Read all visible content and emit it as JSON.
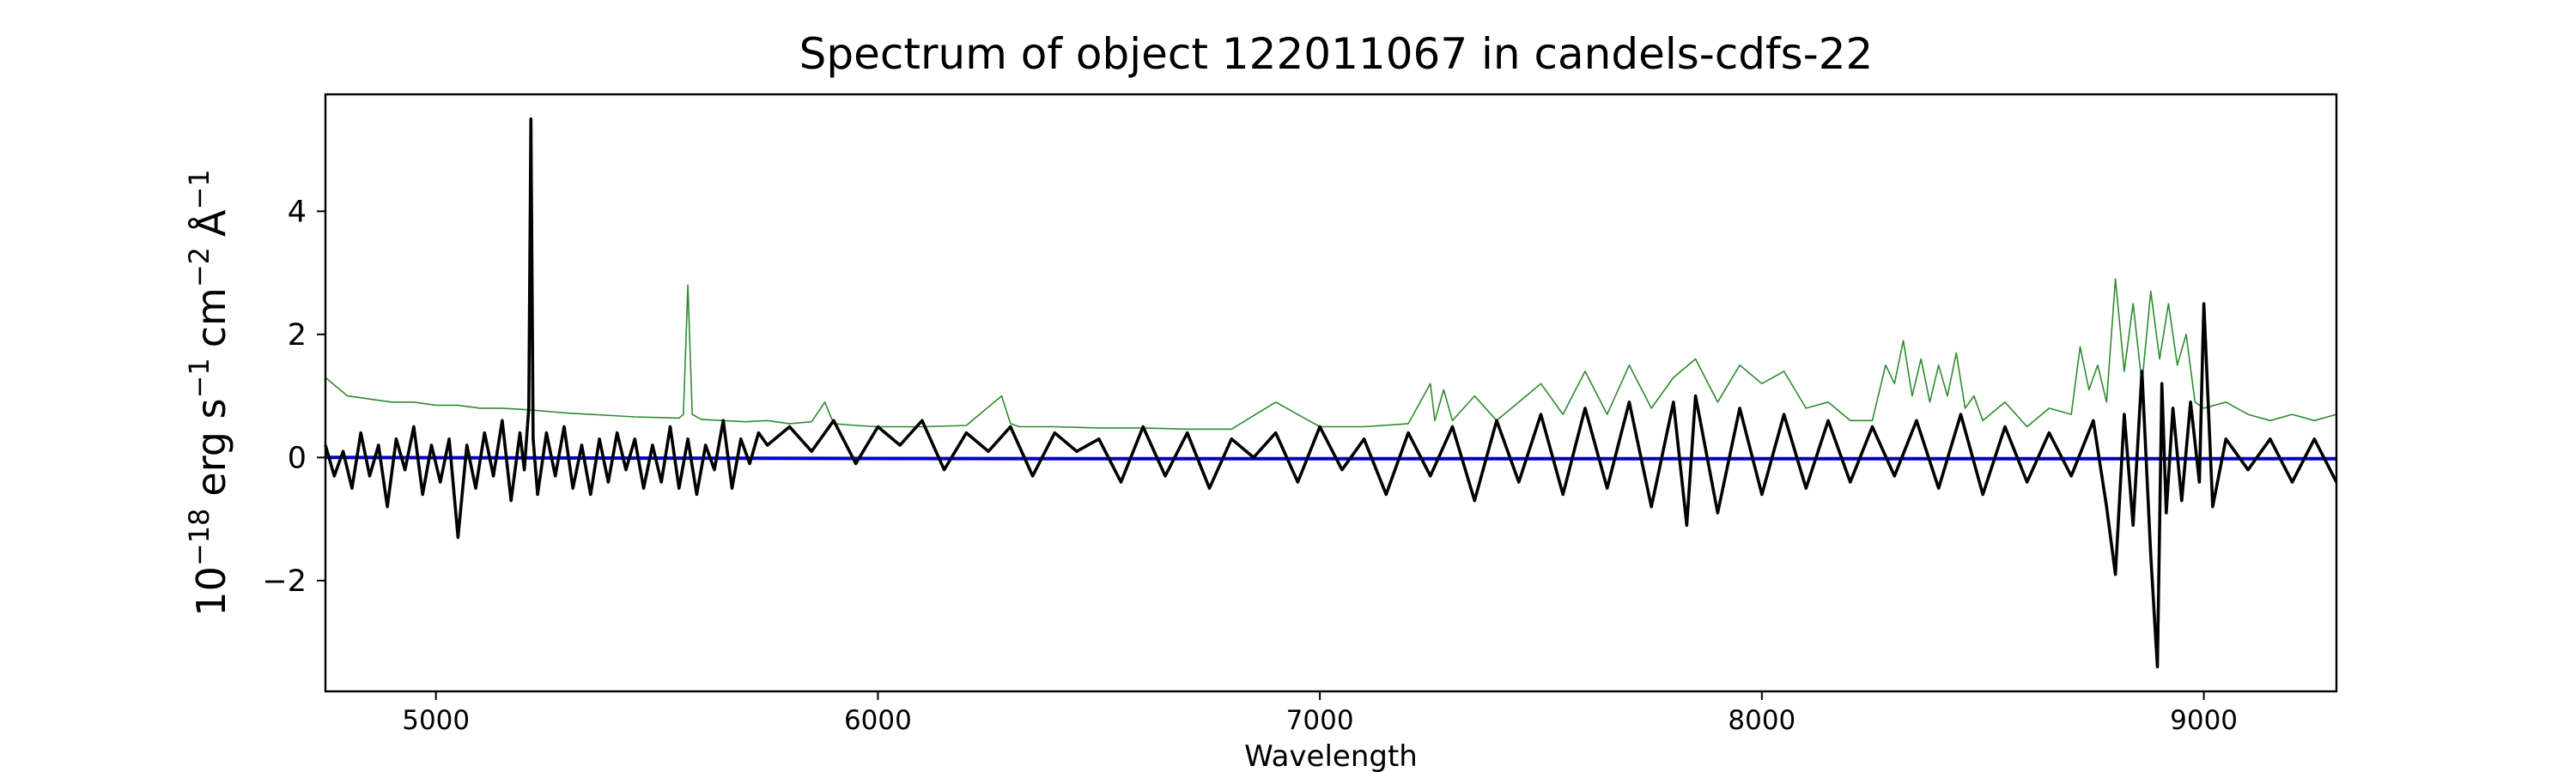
{
  "chart_data": {
    "type": "line",
    "title": "Spectrum of object 122011067 in candels-cdfs-22",
    "xlabel": "Wavelength",
    "ylabel_base": "10",
    "ylabel_exp": "−18",
    "ylabel_units": "erg s",
    "ylabel_s_exp": "−1",
    "ylabel_cm": "cm",
    "ylabel_cm_exp": "−2",
    "ylabel_ang": "Å",
    "ylabel_ang_exp": "−1",
    "xlim": [
      4750,
      9300
    ],
    "ylim": [
      -3.8,
      5.9
    ],
    "x_ticks": [
      5000,
      6000,
      7000,
      8000,
      9000
    ],
    "x_tick_labels": [
      "5000",
      "6000",
      "7000",
      "8000",
      "9000"
    ],
    "y_ticks": [
      -2,
      0,
      2,
      4
    ],
    "y_tick_labels": [
      "−2",
      "0",
      "2",
      "4"
    ],
    "grid": false,
    "colors": {
      "flux": "#000000",
      "noise": "#2e8b2e",
      "model": "#0000cc"
    },
    "series": [
      {
        "key": "flux",
        "x": [
          4750,
          4770,
          4790,
          4810,
          4830,
          4850,
          4870,
          4890,
          4910,
          4930,
          4950,
          4970,
          4990,
          5010,
          5030,
          5050,
          5070,
          5090,
          5110,
          5130,
          5150,
          5170,
          5190,
          5200,
          5210,
          5215,
          5220,
          5230,
          5250,
          5270,
          5290,
          5310,
          5330,
          5350,
          5370,
          5390,
          5410,
          5430,
          5450,
          5470,
          5490,
          5510,
          5530,
          5550,
          5570,
          5590,
          5610,
          5630,
          5650,
          5670,
          5690,
          5710,
          5730,
          5750,
          5800,
          5850,
          5900,
          5950,
          6000,
          6050,
          6100,
          6150,
          6200,
          6250,
          6300,
          6350,
          6400,
          6450,
          6500,
          6550,
          6600,
          6650,
          6700,
          6750,
          6800,
          6850,
          6900,
          6950,
          7000,
          7050,
          7100,
          7150,
          7200,
          7250,
          7300,
          7350,
          7400,
          7450,
          7500,
          7550,
          7600,
          7650,
          7700,
          7750,
          7800,
          7830,
          7850,
          7900,
          7950,
          8000,
          8050,
          8100,
          8150,
          8200,
          8250,
          8300,
          8350,
          8400,
          8450,
          8500,
          8550,
          8600,
          8650,
          8700,
          8750,
          8780,
          8800,
          8820,
          8840,
          8860,
          8880,
          8895,
          8905,
          8915,
          8930,
          8950,
          8970,
          8990,
          9000,
          9020,
          9050,
          9100,
          9150,
          9200,
          9250,
          9300
        ],
        "y": [
          0.2,
          -0.3,
          0.1,
          -0.5,
          0.4,
          -0.3,
          0.2,
          -0.8,
          0.3,
          -0.2,
          0.5,
          -0.6,
          0.2,
          -0.4,
          0.3,
          -1.3,
          0.2,
          -0.5,
          0.4,
          -0.3,
          0.6,
          -0.7,
          0.4,
          -0.2,
          0.8,
          5.5,
          0.3,
          -0.6,
          0.4,
          -0.3,
          0.5,
          -0.5,
          0.2,
          -0.6,
          0.3,
          -0.4,
          0.4,
          -0.2,
          0.3,
          -0.5,
          0.2,
          -0.4,
          0.5,
          -0.5,
          0.3,
          -0.6,
          0.2,
          -0.2,
          0.6,
          -0.5,
          0.3,
          -0.1,
          0.4,
          0.2,
          0.5,
          0.1,
          0.6,
          -0.1,
          0.5,
          0.2,
          0.6,
          -0.2,
          0.4,
          0.1,
          0.5,
          -0.3,
          0.4,
          0.1,
          0.3,
          -0.4,
          0.5,
          -0.3,
          0.4,
          -0.5,
          0.3,
          0.0,
          0.4,
          -0.4,
          0.5,
          -0.2,
          0.3,
          -0.6,
          0.4,
          -0.3,
          0.5,
          -0.7,
          0.6,
          -0.4,
          0.7,
          -0.6,
          0.8,
          -0.5,
          0.9,
          -0.8,
          0.9,
          -1.1,
          1.0,
          -0.9,
          0.8,
          -0.6,
          0.7,
          -0.5,
          0.6,
          -0.4,
          0.5,
          -0.3,
          0.6,
          -0.5,
          0.7,
          -0.6,
          0.5,
          -0.4,
          0.4,
          -0.3,
          0.6,
          -0.8,
          -1.9,
          0.7,
          -1.1,
          1.4,
          -1.6,
          -3.4,
          1.2,
          -0.9,
          0.8,
          -0.7,
          0.9,
          -0.4,
          2.5,
          -0.8,
          0.3,
          -0.2,
          0.3,
          -0.4,
          0.3,
          -0.4
        ]
      },
      {
        "key": "noise",
        "x": [
          4750,
          4800,
          4850,
          4900,
          4950,
          5000,
          5050,
          5100,
          5150,
          5200,
          5250,
          5300,
          5350,
          5400,
          5450,
          5500,
          5550,
          5560,
          5570,
          5580,
          5600,
          5650,
          5700,
          5750,
          5800,
          5850,
          5880,
          5900,
          5950,
          6000,
          6100,
          6200,
          6280,
          6300,
          6320,
          6400,
          6500,
          6600,
          6700,
          6800,
          6900,
          7000,
          7100,
          7200,
          7250,
          7260,
          7280,
          7300,
          7350,
          7400,
          7450,
          7500,
          7550,
          7600,
          7650,
          7700,
          7750,
          7800,
          7850,
          7900,
          7950,
          8000,
          8050,
          8100,
          8150,
          8200,
          8250,
          8280,
          8300,
          8320,
          8340,
          8360,
          8380,
          8400,
          8420,
          8440,
          8460,
          8480,
          8500,
          8550,
          8600,
          8650,
          8700,
          8720,
          8740,
          8760,
          8780,
          8800,
          8820,
          8840,
          8860,
          8880,
          8900,
          8920,
          8940,
          8960,
          8980,
          9000,
          9050,
          9100,
          9150,
          9200,
          9250,
          9300
        ],
        "y": [
          1.3,
          1.0,
          0.95,
          0.9,
          0.9,
          0.85,
          0.85,
          0.8,
          0.8,
          0.78,
          0.75,
          0.72,
          0.7,
          0.68,
          0.66,
          0.65,
          0.64,
          0.7,
          2.8,
          0.7,
          0.62,
          0.6,
          0.58,
          0.6,
          0.55,
          0.58,
          0.9,
          0.55,
          0.52,
          0.5,
          0.5,
          0.52,
          1.0,
          0.55,
          0.5,
          0.5,
          0.48,
          0.48,
          0.46,
          0.46,
          0.9,
          0.5,
          0.5,
          0.55,
          1.2,
          0.6,
          1.1,
          0.6,
          1.0,
          0.6,
          0.9,
          1.2,
          0.7,
          1.4,
          0.7,
          1.5,
          0.8,
          1.3,
          1.6,
          0.9,
          1.5,
          1.2,
          1.4,
          0.8,
          0.9,
          0.6,
          0.6,
          1.5,
          1.2,
          1.9,
          1.0,
          1.6,
          0.9,
          1.5,
          1.0,
          1.7,
          0.8,
          1.0,
          0.6,
          0.9,
          0.5,
          0.8,
          0.7,
          1.8,
          1.1,
          1.5,
          0.9,
          2.9,
          1.4,
          2.5,
          1.2,
          2.7,
          1.6,
          2.5,
          1.5,
          2.0,
          0.9,
          0.8,
          0.9,
          0.7,
          0.6,
          0.7,
          0.6,
          0.7
        ]
      },
      {
        "key": "model",
        "x": [
          4750,
          5500,
          6500,
          7500,
          8500,
          9300
        ],
        "y": [
          0.0,
          -0.01,
          -0.02,
          -0.02,
          -0.02,
          -0.02
        ]
      }
    ]
  }
}
